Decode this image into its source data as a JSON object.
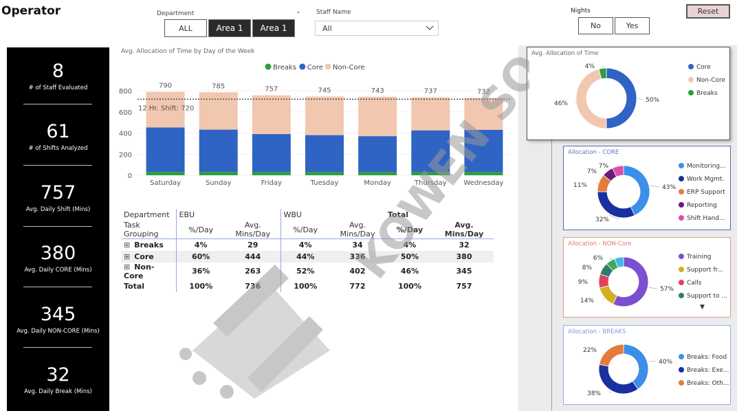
{
  "header": {
    "title": "Operator",
    "department_label": "Department",
    "department_buttons": [
      "ALL",
      "Area 1",
      "Area 1"
    ],
    "staff_label": "Staff Name",
    "staff_value": "All",
    "nights_label": "Nights",
    "nights_buttons": [
      "No",
      "Yes"
    ],
    "reset_label": "Reset"
  },
  "kpis": [
    {
      "value": "8",
      "label": "# of Staff Evaluated"
    },
    {
      "value": "61",
      "label": "# of Shifts Analyzed"
    },
    {
      "value": "757",
      "label": "Avg. Daily Shift (Mins)"
    },
    {
      "value": "380",
      "label": "Avg. Daily CORE (Mins)"
    },
    {
      "value": "345",
      "label": "Avg. Daily NON-CORE (Mins)"
    },
    {
      "value": "32",
      "label": "Avg. Daily Break (Mins)"
    }
  ],
  "chart_data": [
    {
      "type": "bar",
      "stacked": true,
      "title": "Avg. Allocation of Time by Day of the Week",
      "categories": [
        "Saturday",
        "Sunday",
        "Friday",
        "Tuesday",
        "Monday",
        "Thursday",
        "Wednesday"
      ],
      "totals": [
        790,
        785,
        757,
        745,
        743,
        737,
        732
      ],
      "series": [
        {
          "name": "Breaks",
          "color": "#2e9e3e",
          "values": [
            32,
            32,
            30,
            30,
            30,
            30,
            30
          ]
        },
        {
          "name": "Core",
          "color": "#2f64c4",
          "values": [
            420,
            400,
            360,
            350,
            340,
            395,
            400
          ]
        },
        {
          "name": "Non-Core",
          "color": "#f2c7b0",
          "values": [
            338,
            353,
            367,
            365,
            373,
            312,
            302
          ]
        }
      ],
      "yticks": [
        "0",
        "200",
        "400",
        "600",
        "800"
      ],
      "ylim": [
        0,
        800
      ],
      "reference_line": {
        "value": 720,
        "label": "12 Hr. Shift: 720"
      },
      "legend_position": "top"
    },
    {
      "type": "pie",
      "title": "Avg. Allocation of Time",
      "slices": [
        {
          "name": "Core",
          "value": 50,
          "label": "50%",
          "color": "#2f64c4"
        },
        {
          "name": "Non-Core",
          "value": 46,
          "label": "46%",
          "color": "#f2c7b0"
        },
        {
          "name": "Breaks",
          "value": 4,
          "label": "4%",
          "color": "#2e9e3e"
        }
      ]
    },
    {
      "type": "pie",
      "title": "Allocation - CORE",
      "slices": [
        {
          "name": "Monitoring...",
          "value": 43,
          "label": "43%",
          "color": "#3c8fe8"
        },
        {
          "name": "Work Mgmt.",
          "value": 32,
          "label": "32%",
          "color": "#1a2fa0"
        },
        {
          "name": "ERP Support",
          "value": 11,
          "label": "11%",
          "color": "#e57a3c"
        },
        {
          "name": "Reporting",
          "value": 7,
          "label": "7%",
          "color": "#6a1b7a"
        },
        {
          "name": "Shift Hand...",
          "value": 7,
          "label": "7%",
          "color": "#d94fb0"
        }
      ]
    },
    {
      "type": "pie",
      "title": "Allocation - NON-Core",
      "slices": [
        {
          "name": "Training",
          "value": 57,
          "label": "57%",
          "color": "#7b4fd0"
        },
        {
          "name": "Support fr...",
          "value": 14,
          "label": "14%",
          "color": "#d4b020"
        },
        {
          "name": "Calls",
          "value": 9,
          "label": "9%",
          "color": "#e04060"
        },
        {
          "name": "Support to ...",
          "value": 8,
          "label": "8%",
          "color": "#2e7d6e"
        },
        {
          "name": "",
          "value": 6,
          "label": "6%",
          "color": "#3caa5a"
        },
        {
          "name": "",
          "value": 6,
          "label": "",
          "color": "#40b8e8"
        }
      ]
    },
    {
      "type": "pie",
      "title": "Allocation - BREAKS",
      "slices": [
        {
          "name": "Breaks: Food",
          "value": 40,
          "label": "40%",
          "color": "#3c8fe8"
        },
        {
          "name": "Breaks: Exe...",
          "value": 38,
          "label": "38%",
          "color": "#1a2fa0"
        },
        {
          "name": "Breaks: Oth...",
          "value": 22,
          "label": "22%",
          "color": "#e57a3c"
        }
      ]
    }
  ],
  "table": {
    "header1": [
      "Department",
      "EBU",
      "",
      "WBU",
      "",
      "Total",
      ""
    ],
    "header2": [
      "Task Grouping",
      "%/Day",
      "Avg. Mins/Day",
      "%/Day",
      "Avg. Mins/Day",
      "%/Day",
      "Avg. Mins/Day"
    ],
    "rows": [
      [
        "Breaks",
        "4%",
        "29",
        "4%",
        "34",
        "4%",
        "32"
      ],
      [
        "Core",
        "60%",
        "444",
        "44%",
        "336",
        "50%",
        "380"
      ],
      [
        "Non-Core",
        "36%",
        "263",
        "52%",
        "402",
        "46%",
        "345"
      ],
      [
        "Total",
        "100%",
        "736",
        "100%",
        "772",
        "100%",
        "757"
      ]
    ]
  },
  "watermark": "KOWEN SOLUTIONS",
  "colors": {
    "core": "#2f64c4",
    "noncore": "#f2c7b0",
    "breaks": "#2e9e3e"
  }
}
